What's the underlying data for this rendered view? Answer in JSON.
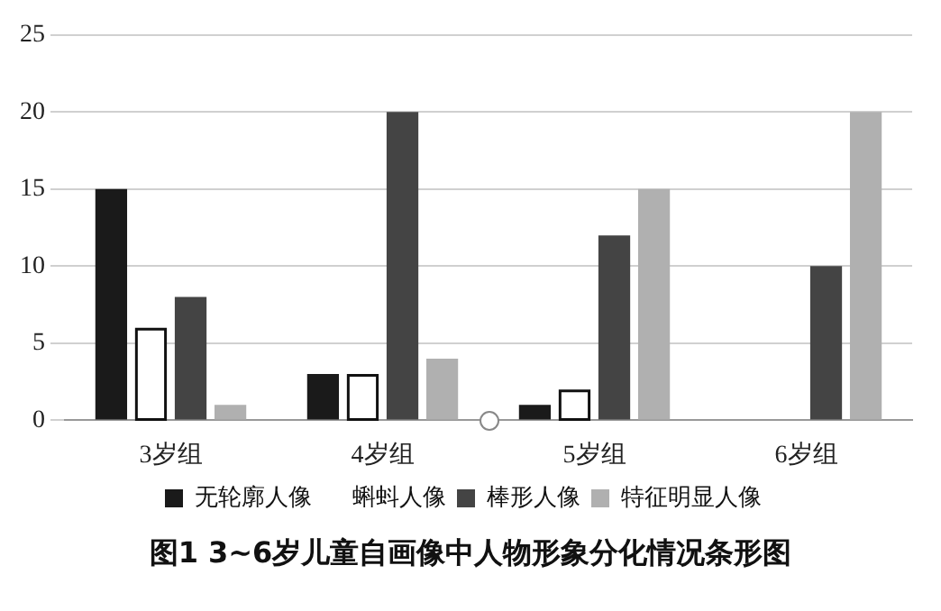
{
  "chart_data": {
    "type": "bar",
    "title": "图1 3~6岁儿童自画像中人物形象分化情况条形图",
    "categories": [
      "3岁组",
      "4岁组",
      "5岁组",
      "6岁组"
    ],
    "series": [
      {
        "name": "无轮廓人像",
        "color": "#1a1a1a",
        "values": [
          15,
          3,
          1,
          0
        ]
      },
      {
        "name": "蝌蚪人像",
        "color": "#ffffff",
        "values": [
          6,
          3,
          2,
          0
        ]
      },
      {
        "name": "棒形人像",
        "color": "#444444",
        "values": [
          8,
          20,
          12,
          10
        ]
      },
      {
        "name": "特征明显人像",
        "color": "#b0b0b0",
        "values": [
          1,
          4,
          15,
          20
        ]
      }
    ],
    "ylim": [
      0,
      25
    ],
    "yticks": [
      0,
      5,
      10,
      15,
      20,
      25
    ],
    "grid": "y",
    "legend": "bottom"
  }
}
